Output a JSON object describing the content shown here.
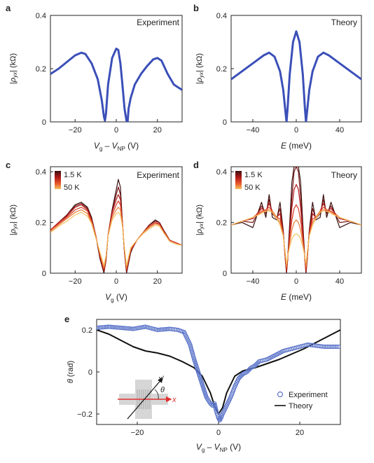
{
  "figure": {
    "colors": {
      "experiment": "#3b4fb8",
      "theory_ab": "#3b4fb8",
      "theory_e": "#111111",
      "experiment_e": "#5b74c9",
      "temp_cold": "#3a1010",
      "temp_hot": "#f5c060"
    }
  },
  "chart_data": [
    {
      "id": "a",
      "panel_label": "a",
      "type": "line",
      "tag": "Experiment",
      "xlabel": "Vg – VNP (V)",
      "ylabel": "|ρyx| (kΩ)",
      "xlim": [
        -32,
        32
      ],
      "ylim": [
        0,
        0.4
      ],
      "xticks": [
        -20,
        0,
        20
      ],
      "yticks": [
        0,
        0.2,
        0.4
      ],
      "series": [
        {
          "x": [
            -32,
            -28,
            -24,
            -20,
            -17,
            -15,
            -12,
            -9,
            -7,
            -6,
            -5.5,
            -5,
            -4,
            -2,
            0,
            1,
            2,
            3,
            4,
            5,
            5.5,
            6,
            7,
            9,
            12,
            15,
            18,
            20,
            22,
            25,
            28,
            32
          ],
          "y": [
            0.18,
            0.2,
            0.225,
            0.25,
            0.26,
            0.255,
            0.22,
            0.16,
            0.08,
            0.02,
            0.005,
            0.03,
            0.14,
            0.24,
            0.275,
            0.27,
            0.22,
            0.14,
            0.05,
            0.003,
            0.0,
            0.05,
            0.09,
            0.14,
            0.18,
            0.21,
            0.235,
            0.24,
            0.23,
            0.18,
            0.14,
            0.12
          ]
        }
      ]
    },
    {
      "id": "b",
      "panel_label": "b",
      "type": "line",
      "tag": "Theory",
      "xlabel": "E (meV)",
      "ylabel": "|ρyx| (kΩ)",
      "xlim": [
        -60,
        60
      ],
      "ylim": [
        0,
        0.4
      ],
      "xticks": [
        -40,
        0,
        40
      ],
      "yticks": [
        0,
        0.2,
        0.4
      ],
      "series": [
        {
          "x": [
            -60,
            -50,
            -40,
            -30,
            -25,
            -20,
            -15,
            -12,
            -10,
            -9,
            -8,
            -6,
            -3,
            0,
            3,
            6,
            8,
            9,
            10,
            12,
            15,
            20,
            25,
            30,
            40,
            50,
            60
          ],
          "y": [
            0.16,
            0.19,
            0.22,
            0.25,
            0.26,
            0.245,
            0.19,
            0.12,
            0.04,
            0.0,
            0.05,
            0.18,
            0.3,
            0.34,
            0.3,
            0.18,
            0.05,
            0.0,
            0.04,
            0.12,
            0.19,
            0.245,
            0.26,
            0.25,
            0.22,
            0.19,
            0.16
          ]
        }
      ]
    },
    {
      "id": "c",
      "panel_label": "c",
      "type": "line",
      "tag": "Experiment",
      "xlabel": "Vg (V)",
      "ylabel": "|ρyx| (kΩ)",
      "xlim": [
        -32,
        32
      ],
      "ylim": [
        0,
        0.42
      ],
      "xticks": [
        -20,
        0,
        20
      ],
      "yticks": [
        0,
        0.2,
        0.4
      ],
      "legend": {
        "position": "top-left",
        "entries": [
          "1.5 K",
          "50 K"
        ]
      },
      "x": [
        -32,
        -28,
        -24,
        -20,
        -17,
        -14,
        -12,
        -10,
        -8,
        -6,
        -5,
        -4,
        -2,
        0,
        1,
        2,
        3,
        4,
        5,
        6,
        7,
        8,
        10,
        13,
        16,
        19,
        21,
        23,
        26,
        29,
        32
      ],
      "series": [
        {
          "name": "1.5 K",
          "y": [
            0.17,
            0.2,
            0.23,
            0.27,
            0.28,
            0.26,
            0.22,
            0.15,
            0.06,
            0.0,
            0.05,
            0.15,
            0.25,
            0.33,
            0.37,
            0.34,
            0.2,
            0.08,
            0.0,
            0.04,
            0.08,
            0.1,
            0.13,
            0.16,
            0.19,
            0.21,
            0.2,
            0.17,
            0.13,
            0.12,
            0.11
          ]
        },
        {
          "name": "",
          "y": [
            0.17,
            0.2,
            0.23,
            0.265,
            0.275,
            0.255,
            0.215,
            0.15,
            0.065,
            0.005,
            0.05,
            0.15,
            0.245,
            0.31,
            0.34,
            0.31,
            0.2,
            0.08,
            0.005,
            0.045,
            0.085,
            0.1,
            0.13,
            0.16,
            0.19,
            0.205,
            0.2,
            0.17,
            0.13,
            0.12,
            0.11
          ]
        },
        {
          "name": "",
          "y": [
            0.17,
            0.2,
            0.225,
            0.26,
            0.27,
            0.25,
            0.21,
            0.15,
            0.07,
            0.01,
            0.055,
            0.15,
            0.24,
            0.29,
            0.31,
            0.29,
            0.2,
            0.085,
            0.01,
            0.05,
            0.09,
            0.105,
            0.13,
            0.16,
            0.185,
            0.2,
            0.195,
            0.165,
            0.13,
            0.12,
            0.11
          ]
        },
        {
          "name": "",
          "y": [
            0.17,
            0.195,
            0.22,
            0.25,
            0.26,
            0.245,
            0.205,
            0.15,
            0.075,
            0.015,
            0.06,
            0.15,
            0.23,
            0.27,
            0.285,
            0.27,
            0.2,
            0.09,
            0.015,
            0.055,
            0.09,
            0.105,
            0.13,
            0.16,
            0.185,
            0.2,
            0.19,
            0.165,
            0.13,
            0.12,
            0.11
          ]
        },
        {
          "name": "",
          "y": [
            0.165,
            0.19,
            0.215,
            0.24,
            0.25,
            0.235,
            0.2,
            0.145,
            0.08,
            0.02,
            0.065,
            0.15,
            0.22,
            0.25,
            0.26,
            0.25,
            0.19,
            0.095,
            0.02,
            0.06,
            0.095,
            0.11,
            0.13,
            0.16,
            0.18,
            0.195,
            0.19,
            0.16,
            0.125,
            0.115,
            0.11
          ]
        },
        {
          "name": "50 K",
          "y": [
            0.16,
            0.185,
            0.205,
            0.23,
            0.24,
            0.225,
            0.195,
            0.14,
            0.085,
            0.03,
            0.07,
            0.145,
            0.21,
            0.235,
            0.24,
            0.23,
            0.185,
            0.1,
            0.03,
            0.065,
            0.1,
            0.11,
            0.13,
            0.155,
            0.175,
            0.19,
            0.185,
            0.16,
            0.125,
            0.115,
            0.11
          ]
        }
      ]
    },
    {
      "id": "d",
      "panel_label": "d",
      "type": "line",
      "tag": "Theory",
      "xlabel": "E (meV)",
      "ylabel": "|ρyx| (kΩ)",
      "xlim": [
        -60,
        60
      ],
      "ylim": [
        0,
        0.42
      ],
      "xticks": [
        -40,
        0,
        40
      ],
      "yticks": [
        0,
        0.2,
        0.4
      ],
      "legend": {
        "position": "top-left",
        "entries": [
          "1.5 K",
          "50 K"
        ]
      },
      "x": [
        -60,
        -50,
        -40,
        -32,
        -28,
        -25,
        -22,
        -18,
        -15,
        -12,
        -10,
        -9,
        -8,
        -6,
        -4,
        -2,
        0,
        2,
        4,
        6,
        8,
        9,
        10,
        12,
        15,
        18,
        22,
        25,
        28,
        32,
        40,
        50,
        60
      ],
      "series": [
        {
          "name": "1.5 K",
          "y": [
            0.19,
            0.2,
            0.18,
            0.28,
            0.22,
            0.31,
            0.22,
            0.21,
            0.28,
            0.17,
            0.05,
            0.0,
            0.05,
            0.2,
            0.36,
            0.42,
            0.42,
            0.42,
            0.36,
            0.2,
            0.05,
            0.0,
            0.05,
            0.17,
            0.28,
            0.21,
            0.22,
            0.31,
            0.22,
            0.28,
            0.18,
            0.2,
            0.19
          ]
        },
        {
          "name": "",
          "y": [
            0.19,
            0.205,
            0.2,
            0.265,
            0.235,
            0.29,
            0.235,
            0.215,
            0.255,
            0.165,
            0.05,
            0.003,
            0.05,
            0.18,
            0.3,
            0.4,
            0.42,
            0.4,
            0.3,
            0.18,
            0.05,
            0.003,
            0.05,
            0.165,
            0.255,
            0.215,
            0.235,
            0.29,
            0.235,
            0.265,
            0.2,
            0.205,
            0.19
          ]
        },
        {
          "name": "",
          "y": [
            0.19,
            0.205,
            0.215,
            0.255,
            0.245,
            0.275,
            0.245,
            0.22,
            0.235,
            0.16,
            0.055,
            0.008,
            0.05,
            0.16,
            0.26,
            0.33,
            0.35,
            0.33,
            0.26,
            0.16,
            0.05,
            0.008,
            0.055,
            0.16,
            0.235,
            0.22,
            0.245,
            0.275,
            0.245,
            0.255,
            0.215,
            0.205,
            0.19
          ]
        },
        {
          "name": "",
          "y": [
            0.19,
            0.205,
            0.22,
            0.245,
            0.25,
            0.26,
            0.245,
            0.22,
            0.215,
            0.155,
            0.06,
            0.015,
            0.055,
            0.14,
            0.21,
            0.255,
            0.27,
            0.255,
            0.21,
            0.14,
            0.055,
            0.015,
            0.06,
            0.155,
            0.215,
            0.22,
            0.245,
            0.26,
            0.25,
            0.245,
            0.22,
            0.205,
            0.19
          ]
        },
        {
          "name": "",
          "y": [
            0.19,
            0.205,
            0.22,
            0.24,
            0.25,
            0.25,
            0.245,
            0.22,
            0.2,
            0.15,
            0.07,
            0.025,
            0.06,
            0.12,
            0.17,
            0.2,
            0.21,
            0.2,
            0.17,
            0.12,
            0.06,
            0.025,
            0.07,
            0.15,
            0.2,
            0.22,
            0.245,
            0.25,
            0.25,
            0.24,
            0.22,
            0.205,
            0.19
          ]
        },
        {
          "name": "50 K",
          "y": [
            0.19,
            0.205,
            0.22,
            0.235,
            0.245,
            0.245,
            0.24,
            0.215,
            0.19,
            0.145,
            0.08,
            0.035,
            0.065,
            0.105,
            0.135,
            0.15,
            0.155,
            0.15,
            0.135,
            0.105,
            0.065,
            0.035,
            0.08,
            0.145,
            0.19,
            0.215,
            0.24,
            0.245,
            0.245,
            0.235,
            0.22,
            0.205,
            0.19
          ]
        }
      ]
    },
    {
      "id": "e",
      "panel_label": "e",
      "type": "scatter",
      "xlabel": "Vg – VNP (V)",
      "ylabel": "θ (rad)",
      "xlim": [
        -30,
        30
      ],
      "ylim": [
        -0.25,
        0.25
      ],
      "xticks": [
        -20,
        0,
        20
      ],
      "yticks": [
        -0.2,
        0,
        0.2
      ],
      "legend": {
        "position": "bottom-right",
        "entries": [
          "Experiment",
          "Theory"
        ]
      },
      "inset_labels": {
        "x_prime": "x′",
        "theta": "θ",
        "x": "x"
      },
      "series": [
        {
          "name": "Experiment",
          "type": "scatter",
          "x": [
            -30,
            -27,
            -24,
            -21,
            -18,
            -15,
            -12,
            -10,
            -8.5,
            -7,
            -6,
            -5,
            -4,
            -3,
            -2,
            -1.5,
            -1,
            -0.5,
            0,
            0.3,
            0.6,
            1,
            2,
            3,
            4,
            5,
            6,
            7,
            8,
            9,
            10,
            12,
            14,
            16,
            18,
            20,
            22,
            24,
            26,
            28,
            30
          ],
          "y": [
            0.21,
            0.215,
            0.21,
            0.205,
            0.215,
            0.2,
            0.205,
            0.2,
            0.19,
            0.13,
            0.06,
            0.0,
            -0.06,
            -0.12,
            -0.15,
            -0.16,
            -0.15,
            -0.19,
            -0.22,
            -0.23,
            -0.22,
            -0.2,
            -0.16,
            -0.12,
            -0.07,
            -0.03,
            -0.01,
            0.0,
            0.02,
            0.03,
            0.05,
            0.06,
            0.08,
            0.1,
            0.11,
            0.12,
            0.13,
            0.125,
            0.12,
            0.12,
            0.12
          ]
        },
        {
          "name": "Theory",
          "type": "line",
          "x": [
            -30,
            -27,
            -24,
            -21,
            -18,
            -15,
            -12,
            -9,
            -6,
            -4,
            -2,
            -1,
            0,
            1,
            2,
            4,
            6,
            9,
            12,
            15,
            18,
            21,
            24,
            27,
            30
          ],
          "y": [
            0.2,
            0.18,
            0.15,
            0.12,
            0.1,
            0.09,
            0.075,
            0.05,
            0.02,
            -0.02,
            -0.1,
            -0.16,
            -0.2,
            -0.17,
            -0.1,
            -0.02,
            0.005,
            0.02,
            0.04,
            0.06,
            0.085,
            0.11,
            0.14,
            0.17,
            0.2
          ]
        }
      ]
    }
  ]
}
